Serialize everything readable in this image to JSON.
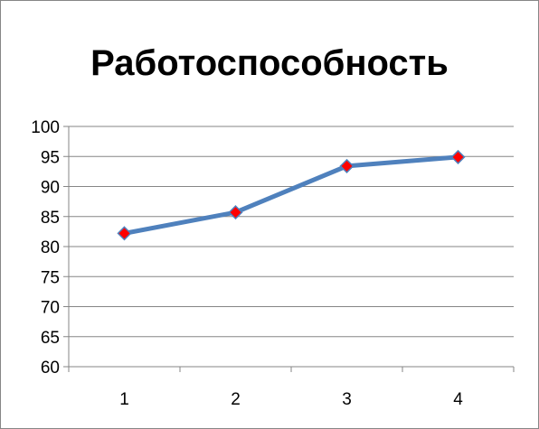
{
  "chart_data": {
    "type": "line",
    "title": "Работоспособность",
    "xlabel": "",
    "ylabel": "",
    "categories": [
      "1",
      "2",
      "3",
      "4"
    ],
    "series": [
      {
        "values": [
          82.2,
          85.7,
          93.4,
          94.9
        ],
        "color": "#4f81bd",
        "marker_color": "#ff0000"
      }
    ],
    "ylim": [
      60,
      100
    ],
    "yticks": [
      60,
      65,
      70,
      75,
      80,
      85,
      90,
      95,
      100
    ],
    "grid": true,
    "legend": "none"
  }
}
